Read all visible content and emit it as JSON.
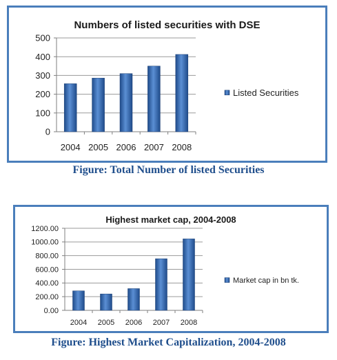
{
  "colors": {
    "frame_border": "#4a7ebb",
    "bar_dark": "#1f4b8a",
    "bar_light": "#5b8fd4",
    "caption": "#1f4e8c"
  },
  "captions": {
    "first": "Figure: Total Number of listed Securities",
    "second": "Figure: Highest Market Capitalization, 2004-2008"
  },
  "chart_data": [
    {
      "type": "bar",
      "title": "Numbers of listed securities with DSE",
      "categories": [
        "2004",
        "2005",
        "2006",
        "2007",
        "2008"
      ],
      "series": [
        {
          "name": "Listed Securities",
          "values": [
            256,
            286,
            310,
            350,
            412
          ]
        }
      ],
      "xlabel": "",
      "ylabel": "",
      "ylim": [
        0,
        500
      ],
      "yticks": [
        0,
        100,
        200,
        300,
        400,
        500
      ],
      "ytick_labels": [
        "0",
        "100",
        "200",
        "300",
        "400",
        "500"
      ],
      "grid": true,
      "legend_position": "right"
    },
    {
      "type": "bar",
      "title": "Highest market cap, 2004-2008",
      "categories": [
        "2004",
        "2005",
        "2006",
        "2007",
        "2008"
      ],
      "series": [
        {
          "name": "Market cap in bn tk.",
          "values": [
            285,
            240,
            318,
            755,
            1045
          ]
        }
      ],
      "xlabel": "",
      "ylabel": "",
      "ylim": [
        0,
        1200
      ],
      "yticks": [
        0,
        200,
        400,
        600,
        800,
        1000,
        1200
      ],
      "ytick_labels": [
        "0.00",
        "200.00",
        "400.00",
        "600.00",
        "800.00",
        "1000.00",
        "1200.00"
      ],
      "grid": true,
      "legend_position": "right"
    }
  ]
}
